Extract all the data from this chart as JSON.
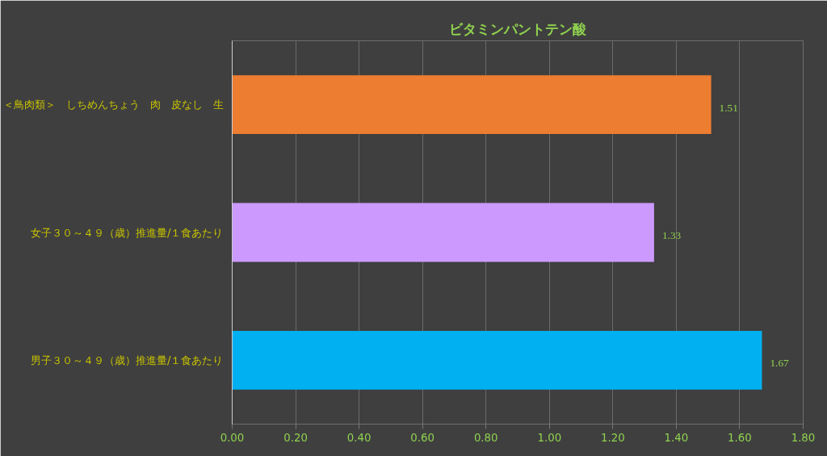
{
  "chart_data": {
    "type": "bar",
    "orientation": "horizontal",
    "title": "ビタミンパントテン酸",
    "categories": [
      "＜鳥肉類＞　しちめんちょう　肉　皮なし　生",
      "女子３０～４９（歳）推進量/１食あたり",
      "男子３０～４９（歳）推進量/１食あたり"
    ],
    "values": [
      1.51,
      1.33,
      1.67
    ],
    "colors": [
      "#ed7d31",
      "#cc99ff",
      "#00b0f0"
    ],
    "xlim": [
      0,
      1.8
    ],
    "xticks": [
      {
        "value": 0,
        "label": "0.00"
      },
      {
        "value": 0.2,
        "label": "0.20"
      },
      {
        "value": 0.4,
        "label": "0.40"
      },
      {
        "value": 0.6,
        "label": "0.60"
      },
      {
        "value": 0.8,
        "label": "0.80"
      },
      {
        "value": 1.0,
        "label": "1.00"
      },
      {
        "value": 1.2,
        "label": "1.20"
      },
      {
        "value": 1.4,
        "label": "1.40"
      },
      {
        "value": 1.6,
        "label": "1.60"
      },
      {
        "value": 1.8,
        "label": "1.80"
      }
    ],
    "grid": "x",
    "data_labels": true
  }
}
